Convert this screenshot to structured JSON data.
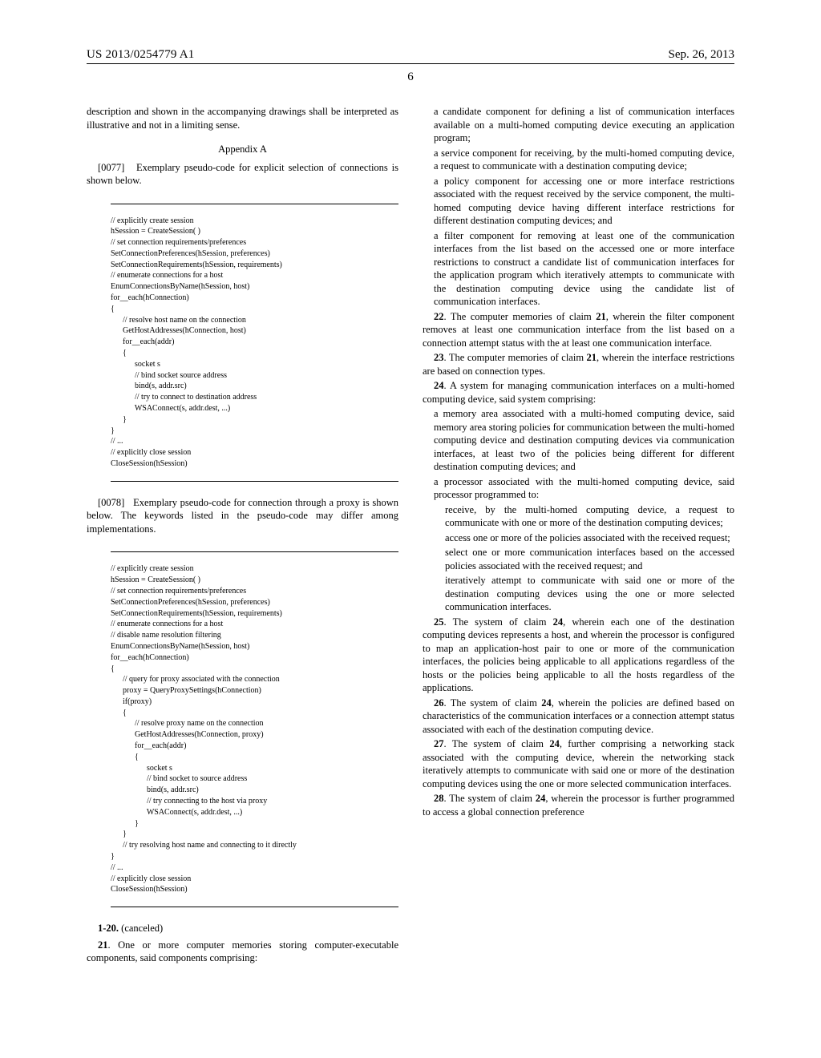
{
  "header": {
    "pub_number": "US 2013/0254779 A1",
    "date": "Sep. 26, 2013"
  },
  "page_number": "6",
  "left_column": {
    "intro_para": "description and shown in the accompanying drawings shall be interpreted as illustrative and not in a limiting sense.",
    "appendix_title": "Appendix A",
    "para_0077_num": "[0077]",
    "para_0077": "Exemplary pseudo-code for explicit selection of connections is shown below.",
    "code1": "// explicitly create session\nhSession = CreateSession( )\n// set connection requirements/preferences\nSetConnectionPreferences(hSession, preferences)\nSetConnectionRequirements(hSession, requirements)\n// enumerate connections for a host\nEnumConnectionsByName(hSession, host)\nfor__each(hConnection)\n{\n      // resolve host name on the connection\n      GetHostAddresses(hConnection, host)\n      for__each(addr)\n      {\n            socket s\n            // bind socket source address\n            bind(s, addr.src)\n            // try to connect to destination address\n            WSAConnect(s, addr.dest, ...)\n      }\n}\n// ...\n// explicitly close session\nCloseSession(hSession)",
    "para_0078_num": "[0078]",
    "para_0078": "Exemplary pseudo-code for connection through a proxy is shown below. The keywords listed in the pseudo-code may differ among implementations.",
    "code2": "// explicitly create session\nhSession = CreateSession( )\n// set connection requirements/preferences\nSetConnectionPreferences(hSession, preferences)\nSetConnectionRequirements(hSession, requirements)\n// enumerate connections for a host\n// disable name resolution filtering\nEnumConnectionsByName(hSession, host)\nfor__each(hConnection)\n{\n      // query for proxy associated with the connection\n      proxy = QueryProxySettings(hConnection)\n      if(proxy)\n      {\n            // resolve proxy name on the connection\n            GetHostAddresses(hConnection, proxy)\n            for__each(addr)\n            {\n                  socket s\n                  // bind socket to source address\n                  bind(s, addr.src)\n                  // try connecting to the host via proxy\n                  WSAConnect(s, addr.dest, ...)\n            }\n      }\n      // try resolving host name and connecting to it directly\n}\n// ...\n// explicitly close session\nCloseSession(hSession)",
    "claims_1_20_num": "1-20.",
    "claims_1_20": " (canceled)",
    "claim_21_num": "21",
    "claim_21_intro": ". One or more computer memories storing computer-executable components, said components comprising:"
  },
  "right_column": {
    "claim_21_a": "a candidate component for defining a list of communication interfaces available on a multi-homed computing device executing an application program;",
    "claim_21_b": "a service component for receiving, by the multi-homed computing device, a request to communicate with a destination computing device;",
    "claim_21_c": "a policy component for accessing one or more interface restrictions associated with the request received by the service component, the multi-homed computing device having different interface restrictions for different destination computing devices; and",
    "claim_21_d": "a filter component for removing at least one of the communication interfaces from the list based on the accessed one or more interface restrictions to construct a candidate list of communication interfaces for the application program which iteratively attempts to communicate with the destination computing device using the candidate list of communication interfaces.",
    "claim_22_num": "22",
    "claim_22": ". The computer memories of claim ",
    "claim_22_ref": "21",
    "claim_22_rest": ", wherein the filter component removes at least one communication interface from the list based on a connection attempt status with the at least one communication interface.",
    "claim_23_num": "23",
    "claim_23": ". The computer memories of claim ",
    "claim_23_ref": "21",
    "claim_23_rest": ", wherein the interface restrictions are based on connection types.",
    "claim_24_num": "24",
    "claim_24": ". A system for managing communication interfaces on a multi-homed computing device, said system comprising:",
    "claim_24_a": "a memory area associated with a multi-homed computing device, said memory area storing policies for communication between the multi-homed computing device and destination computing devices via communication interfaces, at least two of the policies being different for different destination computing devices; and",
    "claim_24_b": "a processor associated with the multi-homed computing device, said processor programmed to:",
    "claim_24_b1": "receive, by the multi-homed computing device, a request to communicate with one or more of the destination computing devices;",
    "claim_24_b2": "access one or more of the policies associated with the received request;",
    "claim_24_b3": "select one or more communication interfaces based on the accessed policies associated with the received request; and",
    "claim_24_b4": "iteratively attempt to communicate with said one or more of the destination computing devices using the one or more selected communication interfaces.",
    "claim_25_num": "25",
    "claim_25": ". The system of claim ",
    "claim_25_ref": "24",
    "claim_25_rest": ", wherein each one of the destination computing devices represents a host, and wherein the processor is configured to map an application-host pair to one or more of the communication interfaces, the policies being applicable to all applications regardless of the hosts or the policies being applicable to all the hosts regardless of the applications.",
    "claim_26_num": "26",
    "claim_26": ". The system of claim ",
    "claim_26_ref": "24",
    "claim_26_rest": ", wherein the policies are defined based on characteristics of the communication interfaces or a connection attempt status associated with each of the destination computing device.",
    "claim_27_num": "27",
    "claim_27": ". The system of claim ",
    "claim_27_ref": "24",
    "claim_27_rest": ", further comprising a networking stack associated with the computing device, wherein the networking stack iteratively attempts to communicate with said one or more of the destination computing devices using the one or more selected communication interfaces.",
    "claim_28_num": "28",
    "claim_28": ". The system of claim ",
    "claim_28_ref": "24",
    "claim_28_rest": ", wherein the processor is further programmed to access a global connection preference"
  }
}
